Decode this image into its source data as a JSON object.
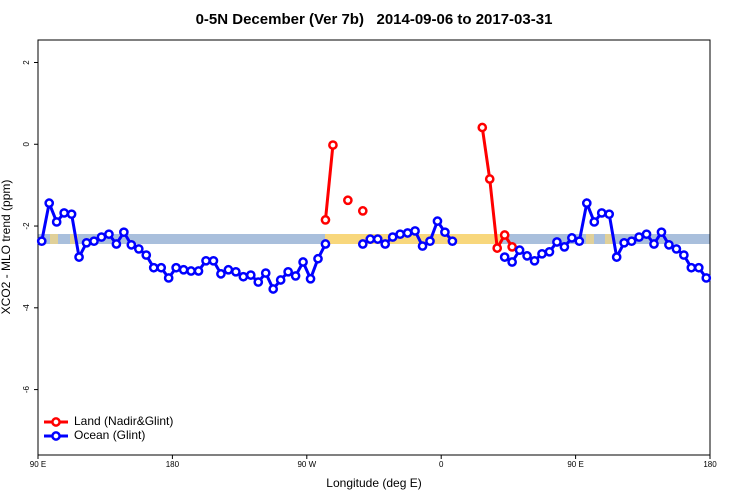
{
  "chart_data": {
    "type": "line",
    "title": "0-5N December (Ver 7b)   2014-09-06 to 2017-03-31",
    "xlabel": "Longitude (deg E)",
    "ylabel": "XCO2 - MLO trend (ppm)",
    "xlim": [
      90,
      540
    ],
    "ylim": [
      -7.6,
      2.55
    ],
    "xticks": [
      {
        "value": 90,
        "label": "90 E"
      },
      {
        "value": 180,
        "label": "180"
      },
      {
        "value": 270,
        "label": "90 W"
      },
      {
        "value": 360,
        "label": "0"
      },
      {
        "value": 450,
        "label": "90 E"
      },
      {
        "value": 540,
        "label": "180"
      }
    ],
    "yticks": [
      -6,
      -4,
      -2,
      0,
      2
    ],
    "legend": "bottom-left",
    "x": [
      92.5,
      97.5,
      102.5,
      107.5,
      112.5,
      117.5,
      122.5,
      127.5,
      132.5,
      137.5,
      142.5,
      147.5,
      152.5,
      157.5,
      162.5,
      167.5,
      172.5,
      177.5,
      182.5,
      187.5,
      192.5,
      197.5,
      202.5,
      207.5,
      212.5,
      217.5,
      222.5,
      227.5,
      232.5,
      237.5,
      242.5,
      247.5,
      252.5,
      257.5,
      262.5,
      267.5,
      272.5,
      277.5,
      282.5,
      287.5,
      292.5,
      297.5,
      302.5,
      307.5,
      312.5,
      317.5,
      322.5,
      327.5,
      332.5,
      337.5,
      342.5,
      347.5,
      352.5,
      357.5,
      362.5,
      367.5,
      372.5,
      377.5,
      382.5,
      387.5,
      392.5,
      397.5,
      402.5,
      407.5,
      412.5,
      417.5,
      422.5,
      427.5,
      432.5,
      437.5,
      442.5,
      447.5,
      452.5,
      457.5,
      462.5,
      467.5,
      472.5,
      477.5,
      482.5,
      487.5,
      492.5,
      497.5,
      502.5,
      507.5,
      512.5,
      517.5,
      522.5,
      527.5,
      532.5,
      537.5
    ],
    "series": [
      {
        "name": "Land (Nadir&Glint)",
        "color": "#ff0000",
        "values": [
          null,
          null,
          null,
          null,
          null,
          null,
          null,
          null,
          null,
          null,
          null,
          null,
          null,
          null,
          null,
          null,
          null,
          null,
          null,
          null,
          null,
          null,
          null,
          null,
          null,
          null,
          null,
          null,
          null,
          null,
          null,
          null,
          null,
          null,
          null,
          null,
          null,
          null,
          -1.85,
          -0.02,
          null,
          -1.37,
          null,
          -1.63,
          null,
          null,
          null,
          null,
          null,
          null,
          null,
          null,
          null,
          null,
          null,
          null,
          null,
          null,
          null,
          0.41,
          -0.85,
          -2.54,
          -2.22,
          -2.51,
          null,
          null,
          null,
          null,
          null,
          null,
          null,
          null,
          null,
          null,
          null,
          null,
          null,
          null,
          null,
          null,
          null,
          null,
          null,
          null,
          null,
          null,
          null,
          null,
          null,
          null
        ]
      },
      {
        "name": "Ocean (Glint)",
        "color": "#0000ff",
        "values": [
          -2.37,
          -1.44,
          -1.9,
          -1.68,
          -1.71,
          -2.76,
          -2.41,
          -2.37,
          -2.27,
          -2.2,
          -2.44,
          -2.15,
          -2.46,
          -2.56,
          -2.71,
          -3.02,
          -3.02,
          -3.27,
          -3.02,
          -3.07,
          -3.1,
          -3.1,
          -2.85,
          -2.85,
          -3.17,
          -3.07,
          -3.12,
          -3.24,
          -3.2,
          -3.37,
          -3.15,
          -3.54,
          -3.32,
          -3.12,
          -3.22,
          -2.88,
          -3.29,
          -2.8,
          -2.44,
          null,
          null,
          null,
          null,
          -2.44,
          -2.32,
          -2.32,
          -2.44,
          -2.27,
          -2.2,
          -2.17,
          -2.12,
          -2.49,
          -2.37,
          -1.88,
          -2.15,
          -2.37,
          null,
          null,
          null,
          null,
          null,
          null,
          -2.76,
          -2.88,
          -2.59,
          -2.73,
          -2.85,
          -2.68,
          -2.63,
          -2.39,
          -2.51,
          -2.29,
          -2.37,
          -1.44,
          -1.9,
          -1.68,
          -1.71,
          -2.76,
          -2.41,
          -2.37,
          -2.27,
          -2.2,
          -2.44,
          -2.15,
          -2.46,
          -2.56,
          -2.71,
          -3.02,
          -3.02,
          -3.27
        ]
      }
    ]
  }
}
